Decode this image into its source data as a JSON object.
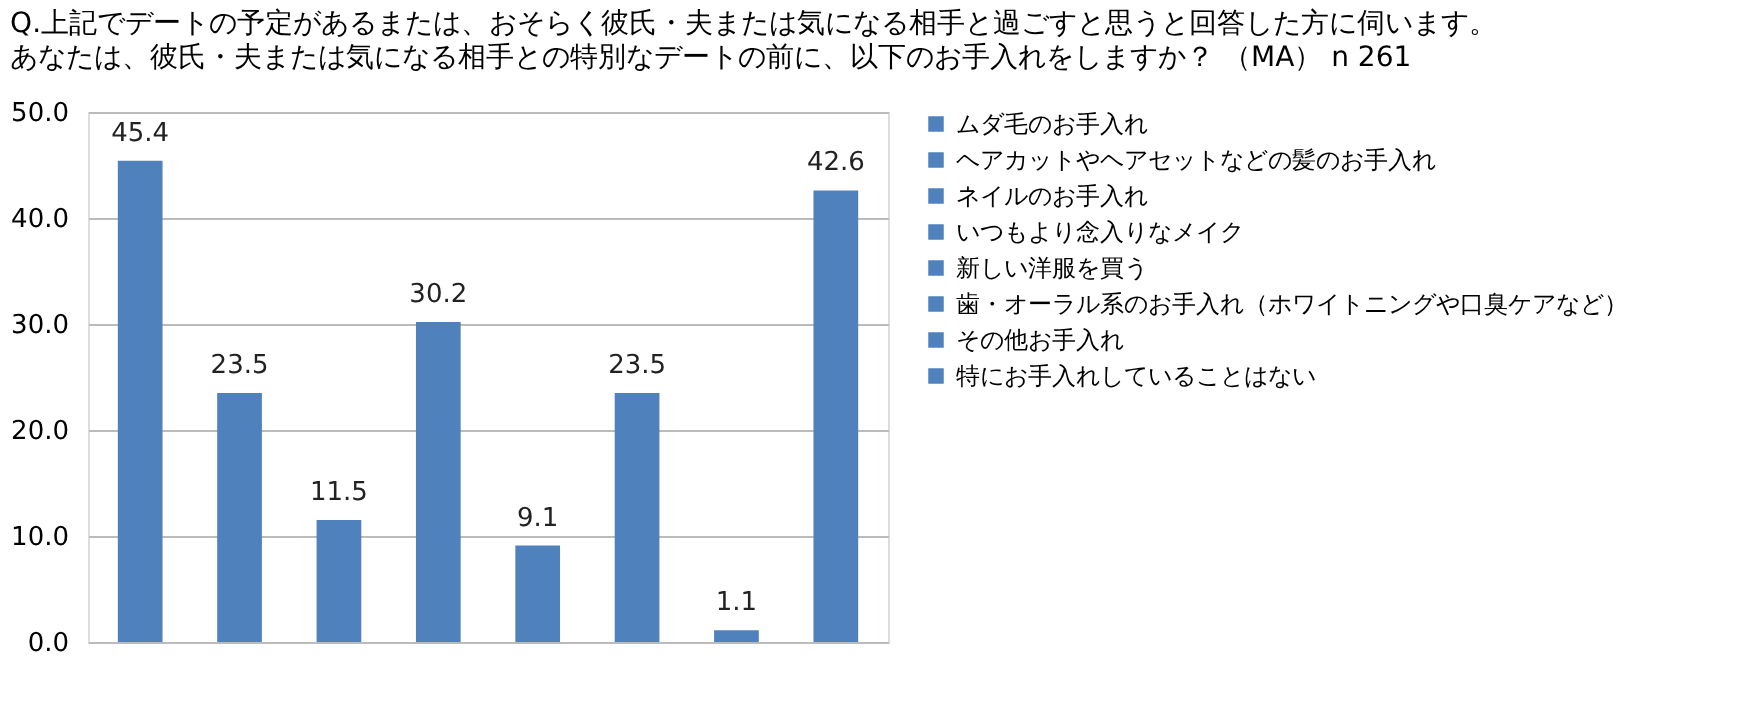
{
  "chart_data": {
    "type": "bar",
    "title": "Q.上記でデートの予定があるまたは、おそらく彼氏・夫または気になる相手と過ごすと思うと回答した方に伺います。",
    "subtitle": "あなたは、彼氏・夫または気になる相手との特別なデートの前に、以下のお手入れをしますか？ （MA） n 261",
    "categories": [
      null
    ],
    "series": [
      {
        "name": "ムダ毛のお手入れ",
        "color": "#4f81bd",
        "values": [
          45.4
        ]
      },
      {
        "name": "ヘアカットやヘアセットなどの髪のお手入れ",
        "color": "#4f81bd",
        "values": [
          23.5
        ]
      },
      {
        "name": "ネイルのお手入れ",
        "color": "#4f81bd",
        "values": [
          11.5
        ]
      },
      {
        "name": "いつもより念入りなメイク",
        "color": "#4f81bd",
        "values": [
          30.2
        ]
      },
      {
        "name": "新しい洋服を買う",
        "color": "#4f81bd",
        "values": [
          9.1
        ]
      },
      {
        "name": "歯・オーラル系のお手入れ（ホワイトニングや口臭ケアなど）",
        "color": "#4f81bd",
        "values": [
          23.5
        ]
      },
      {
        "name": "その他お手入れ",
        "color": "#4f81bd",
        "values": [
          1.1
        ]
      },
      {
        "name": "特にお手入れしていることはない",
        "color": "#4f81bd",
        "values": [
          42.6
        ]
      }
    ],
    "ylim": [
      0,
      50
    ],
    "yticks": [
      {
        "value": 0,
        "label": "0.0"
      },
      {
        "value": 10,
        "label": "10.0"
      },
      {
        "value": 20,
        "label": "20.0"
      },
      {
        "value": 30,
        "label": "30.0"
      },
      {
        "value": 40,
        "label": "40.0"
      },
      {
        "value": 50,
        "label": "50.0"
      }
    ],
    "grid": "y",
    "legend": "right",
    "data_labels": true,
    "tick_labels": "y"
  }
}
